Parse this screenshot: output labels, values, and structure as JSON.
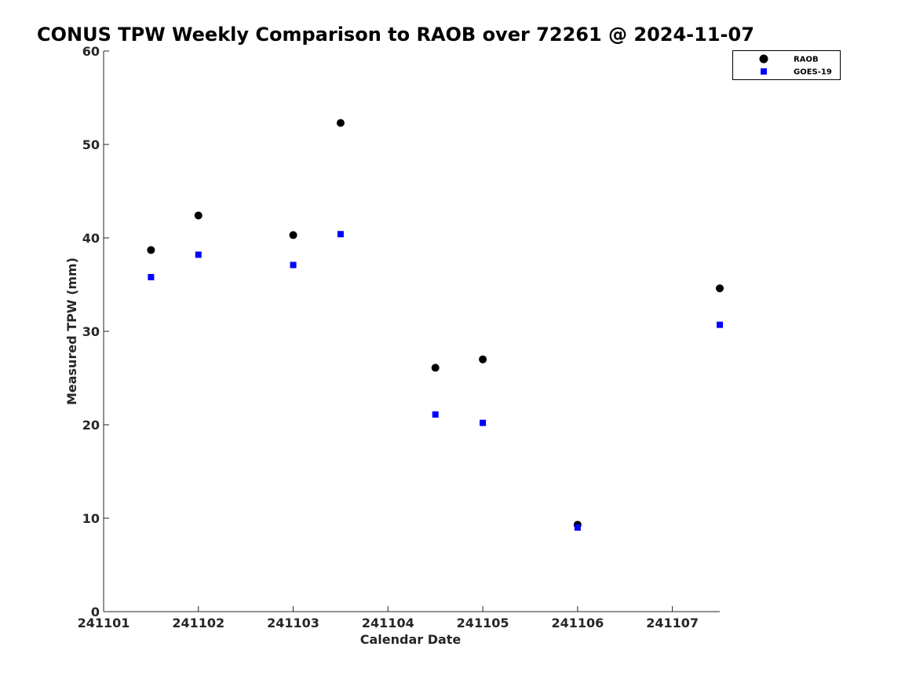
{
  "chart_data": {
    "type": "scatter",
    "title": "CONUS TPW Weekly Comparison to RAOB over 72261 @ 2024-11-07",
    "xlabel": "Calendar Date",
    "ylabel": "Measured TPW (mm)",
    "x_ticks": [
      "241101",
      "241102",
      "241103",
      "241104",
      "241105",
      "241106",
      "241107"
    ],
    "y_ticks": [
      "0",
      "10",
      "20",
      "30",
      "40",
      "50",
      "60"
    ],
    "xlim": [
      "2024-11-01 00:00",
      "2024-11-07 12:00"
    ],
    "ylim": [
      0,
      60
    ],
    "grid": false,
    "legend_position": "top-right",
    "series": [
      {
        "name": "RAOB",
        "marker": "circle",
        "color": "#000000",
        "points": [
          {
            "x": "2024-11-01 12:00",
            "y": 38.7
          },
          {
            "x": "2024-11-02 00:00",
            "y": 42.4
          },
          {
            "x": "2024-11-03 00:00",
            "y": 40.3
          },
          {
            "x": "2024-11-03 12:00",
            "y": 52.3
          },
          {
            "x": "2024-11-04 12:00",
            "y": 26.1
          },
          {
            "x": "2024-11-05 00:00",
            "y": 27.0
          },
          {
            "x": "2024-11-06 00:00",
            "y": 9.3
          },
          {
            "x": "2024-11-07 12:00",
            "y": 34.6
          }
        ]
      },
      {
        "name": "GOES-19",
        "marker": "square",
        "color": "#0000ff",
        "points": [
          {
            "x": "2024-11-01 12:00",
            "y": 35.8
          },
          {
            "x": "2024-11-02 00:00",
            "y": 38.2
          },
          {
            "x": "2024-11-03 00:00",
            "y": 37.1
          },
          {
            "x": "2024-11-03 12:00",
            "y": 40.4
          },
          {
            "x": "2024-11-04 12:00",
            "y": 21.1
          },
          {
            "x": "2024-11-05 00:00",
            "y": 20.2
          },
          {
            "x": "2024-11-06 00:00",
            "y": 9.0
          },
          {
            "x": "2024-11-07 12:00",
            "y": 30.7
          }
        ]
      }
    ]
  }
}
